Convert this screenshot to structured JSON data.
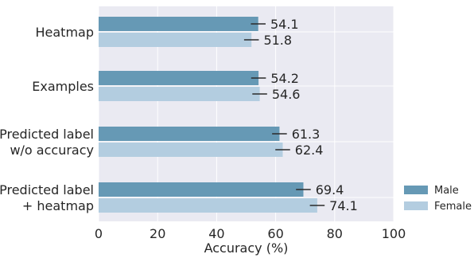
{
  "chart_data": {
    "type": "bar",
    "orientation": "horizontal",
    "categories": [
      [
        "Heatmap"
      ],
      [
        "Examples"
      ],
      [
        "Predicted label",
        "w/o accuracy"
      ],
      [
        "Predicted label",
        "+ heatmap"
      ]
    ],
    "series": [
      {
        "name": "Male",
        "values": [
          54.1,
          54.2,
          61.3,
          69.4
        ],
        "errors": [
          2.5,
          2.5,
          2.5,
          2.5
        ],
        "color": "#6699b5"
      },
      {
        "name": "Female",
        "values": [
          51.8,
          54.6,
          62.4,
          74.1
        ],
        "errors": [
          2.5,
          2.5,
          2.5,
          2.5
        ],
        "color": "#b3cde0"
      }
    ],
    "value_labels": [
      [
        "54.1",
        "54.2",
        "61.3",
        "69.4"
      ],
      [
        "51.8",
        "54.6",
        "62.4",
        "74.1"
      ]
    ],
    "xlabel": "Accuracy (%)",
    "xlim": [
      0,
      100
    ],
    "xticks": [
      0,
      20,
      40,
      60,
      80,
      100
    ],
    "grid": true,
    "legend_position": "lower-right",
    "background_color": "#eaeaf2",
    "grid_color": "#ffffff"
  }
}
